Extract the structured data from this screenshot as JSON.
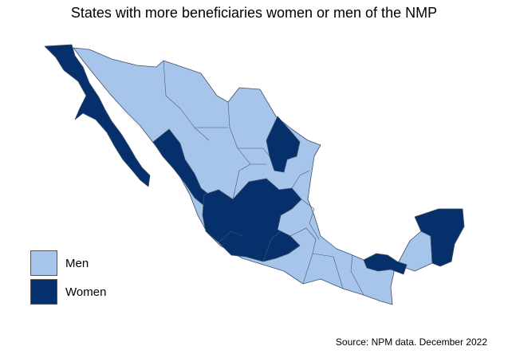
{
  "title": "States with more beneficiaries women or men of the NMP",
  "legend": {
    "items": [
      {
        "label": "Men",
        "color": "#a7c5eb"
      },
      {
        "label": "Women",
        "color": "#05306b"
      }
    ]
  },
  "source": "Source: NPM data. December 2022",
  "colors": {
    "men": "#a7c5eb",
    "women": "#05306b",
    "border": "#3f4f66"
  }
}
